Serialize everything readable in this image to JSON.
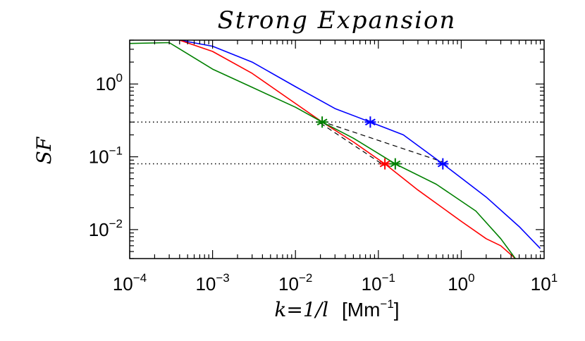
{
  "chart_data": {
    "type": "line",
    "title": "Strong Expansion",
    "xlabel": {
      "var": "k=1/l",
      "unit_open": "[Mm",
      "unit_sup": "−1",
      "unit_close": "]"
    },
    "ylabel": "SF",
    "xscale": "log",
    "yscale": "log",
    "xlim": [
      0.0001,
      10
    ],
    "ylim": [
      0.004,
      4
    ],
    "grid": false,
    "legend": "none",
    "x_ticks": [
      {
        "value": 0.0001,
        "base": "10",
        "exp": "−4"
      },
      {
        "value": 0.001,
        "base": "10",
        "exp": "−3"
      },
      {
        "value": 0.01,
        "base": "10",
        "exp": "−2"
      },
      {
        "value": 0.1,
        "base": "10",
        "exp": "−1"
      },
      {
        "value": 1,
        "base": "10",
        "exp": "0"
      },
      {
        "value": 10,
        "base": "10",
        "exp": "1"
      }
    ],
    "y_ticks": [
      {
        "value": 1,
        "base": "10",
        "exp": "0"
      },
      {
        "value": 0.1,
        "base": "10",
        "exp": "−1"
      },
      {
        "value": 0.01,
        "base": "10",
        "exp": "−2"
      }
    ],
    "hlines": [
      {
        "y": 0.3,
        "style": "dotted",
        "color": "#000000"
      },
      {
        "y": 0.08,
        "style": "dotted",
        "color": "#000000"
      }
    ],
    "dashed_lines": [
      {
        "x": [
          0.02,
          0.6
        ],
        "y": [
          0.31,
          0.085
        ],
        "color": "#000000"
      },
      {
        "x": [
          0.02,
          0.12
        ],
        "y": [
          0.29,
          0.075
        ],
        "color": "#000000"
      }
    ],
    "series": [
      {
        "color": "#0000ff",
        "x": [
          0.0004,
          0.001,
          0.003,
          0.01,
          0.03,
          0.08,
          0.2,
          0.6,
          2,
          5,
          9
        ],
        "y": [
          4,
          3.3,
          2.0,
          0.92,
          0.46,
          0.3,
          0.2,
          0.08,
          0.028,
          0.011,
          0.0055
        ]
      },
      {
        "color": "#ff0000",
        "x": [
          0.0004,
          0.001,
          0.003,
          0.01,
          0.021,
          0.05,
          0.12,
          0.3,
          1,
          2,
          3,
          4.5
        ],
        "y": [
          4,
          2.8,
          1.4,
          0.54,
          0.3,
          0.16,
          0.08,
          0.035,
          0.013,
          0.0075,
          0.006,
          0.004
        ]
      },
      {
        "color": "#008000",
        "x": [
          0.0001,
          0.0003,
          0.001,
          0.003,
          0.01,
          0.021,
          0.05,
          0.16,
          0.5,
          1.5,
          3,
          4.5
        ],
        "y": [
          3.6,
          3.7,
          1.6,
          0.9,
          0.48,
          0.3,
          0.18,
          0.08,
          0.042,
          0.018,
          0.0075,
          0.004
        ]
      }
    ],
    "markers": [
      {
        "x": 0.021,
        "y": 0.3,
        "color": "#008000",
        "symbol": "asterisk"
      },
      {
        "x": 0.08,
        "y": 0.3,
        "color": "#0000ff",
        "symbol": "asterisk"
      },
      {
        "x": 0.12,
        "y": 0.08,
        "color": "#ff0000",
        "symbol": "asterisk"
      },
      {
        "x": 0.16,
        "y": 0.08,
        "color": "#008000",
        "symbol": "asterisk"
      },
      {
        "x": 0.6,
        "y": 0.08,
        "color": "#0000ff",
        "symbol": "asterisk"
      }
    ]
  }
}
